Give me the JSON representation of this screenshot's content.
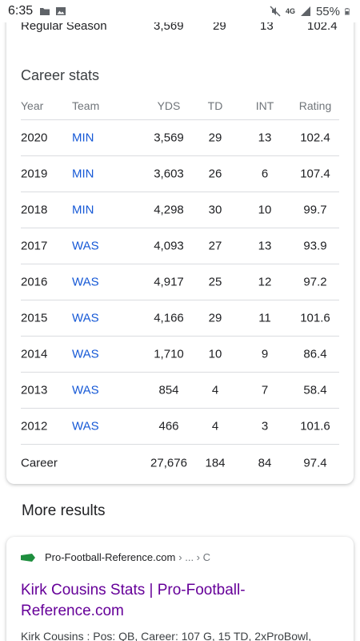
{
  "status_bar": {
    "time": "6:35",
    "network": "4G",
    "battery": "55%"
  },
  "career_card": {
    "season_row": {
      "label": "Regular Season",
      "yds": "3,569",
      "td": "29",
      "int": "13",
      "rating": "102.4"
    },
    "title": "Career stats",
    "headers": {
      "year": "Year",
      "team": "Team",
      "yds": "YDS",
      "td": "TD",
      "int": "INT",
      "rating": "Rating"
    },
    "rows": [
      {
        "year": "2020",
        "team": "MIN",
        "yds": "3,569",
        "td": "29",
        "int": "13",
        "rating": "102.4"
      },
      {
        "year": "2019",
        "team": "MIN",
        "yds": "3,603",
        "td": "26",
        "int": "6",
        "rating": "107.4"
      },
      {
        "year": "2018",
        "team": "MIN",
        "yds": "4,298",
        "td": "30",
        "int": "10",
        "rating": "99.7"
      },
      {
        "year": "2017",
        "team": "WAS",
        "yds": "4,093",
        "td": "27",
        "int": "13",
        "rating": "93.9"
      },
      {
        "year": "2016",
        "team": "WAS",
        "yds": "4,917",
        "td": "25",
        "int": "12",
        "rating": "97.2"
      },
      {
        "year": "2015",
        "team": "WAS",
        "yds": "4,166",
        "td": "29",
        "int": "11",
        "rating": "101.6"
      },
      {
        "year": "2014",
        "team": "WAS",
        "yds": "1,710",
        "td": "10",
        "int": "9",
        "rating": "86.4"
      },
      {
        "year": "2013",
        "team": "WAS",
        "yds": "854",
        "td": "4",
        "int": "7",
        "rating": "58.4"
      },
      {
        "year": "2012",
        "team": "WAS",
        "yds": "466",
        "td": "4",
        "int": "3",
        "rating": "101.6"
      }
    ],
    "career_total": {
      "label": "Career",
      "yds": "27,676",
      "td": "184",
      "int": "84",
      "rating": "97.4"
    }
  },
  "more_results": {
    "heading": "More results",
    "result": {
      "site": "Pro-Football-Reference.com",
      "breadcrumb": "› ... › C",
      "title": "Kirk Cousins Stats | Pro-Football-Reference.com",
      "snippet": "Kirk Cousins : Pos: QB, Career: 107 G, 15 TD, 2xProBowl,",
      "favicon_color": "#1e8e3e"
    }
  },
  "colors": {
    "team_link": "#1558d6",
    "visited_title": "#660099"
  }
}
